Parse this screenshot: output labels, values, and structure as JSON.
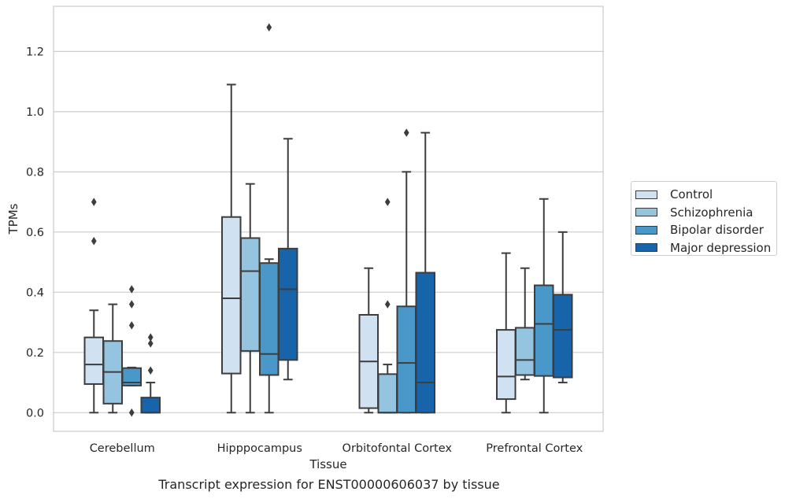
{
  "chart_data": {
    "type": "box",
    "title": "Transcript expression for ENST00000606037 by tissue",
    "xlabel": "Tissue",
    "ylabel": "TPMs",
    "ylim": [
      -0.062,
      1.35
    ],
    "yticks": [
      0.0,
      0.2,
      0.4,
      0.6,
      0.8,
      1.0,
      1.2
    ],
    "ytick_labels": [
      "0.0",
      "0.2",
      "0.4",
      "0.6",
      "0.8",
      "1.0",
      "1.2"
    ],
    "categories": [
      "Cerebellum",
      "Hipppocampus",
      "Orbitofontal Cortex",
      "Prefrontal Cortex"
    ],
    "grid": true,
    "legend_position": "right",
    "series": [
      {
        "name": "Control",
        "color": "#d0e1f2",
        "boxes": [
          {
            "whislo": 0.0,
            "q1": 0.095,
            "med": 0.16,
            "q3": 0.25,
            "whishi": 0.34,
            "fliers": [
              0.57,
              0.7
            ]
          },
          {
            "whislo": 0.0,
            "q1": 0.13,
            "med": 0.38,
            "q3": 0.65,
            "whishi": 1.09,
            "fliers": []
          },
          {
            "whislo": 0.0,
            "q1": 0.015,
            "med": 0.17,
            "q3": 0.325,
            "whishi": 0.48,
            "fliers": []
          },
          {
            "whislo": 0.0,
            "q1": 0.045,
            "med": 0.12,
            "q3": 0.275,
            "whishi": 0.53,
            "fliers": []
          }
        ]
      },
      {
        "name": "Schizophrenia",
        "color": "#94c4df",
        "boxes": [
          {
            "whislo": 0.0,
            "q1": 0.03,
            "med": 0.135,
            "q3": 0.238,
            "whishi": 0.36,
            "fliers": []
          },
          {
            "whislo": 0.0,
            "q1": 0.205,
            "med": 0.47,
            "q3": 0.58,
            "whishi": 0.76,
            "fliers": []
          },
          {
            "whislo": 0.0,
            "q1": 0.0,
            "med": 0.0,
            "q3": 0.128,
            "whishi": 0.16,
            "fliers": [
              0.36,
              0.7
            ]
          },
          {
            "whislo": 0.11,
            "q1": 0.125,
            "med": 0.175,
            "q3": 0.282,
            "whishi": 0.48,
            "fliers": []
          }
        ]
      },
      {
        "name": "Bipolar disorder",
        "color": "#4a98c9",
        "boxes": [
          {
            "whislo": 0.09,
            "q1": 0.09,
            "med": 0.1,
            "q3": 0.148,
            "whishi": 0.15,
            "fliers": [
              0.0,
              0.29,
              0.36,
              0.41
            ]
          },
          {
            "whislo": 0.0,
            "q1": 0.125,
            "med": 0.195,
            "q3": 0.497,
            "whishi": 0.51,
            "fliers": [
              1.28
            ]
          },
          {
            "whislo": 0.0,
            "q1": 0.0,
            "med": 0.165,
            "q3": 0.353,
            "whishi": 0.8,
            "fliers": [
              0.93
            ]
          },
          {
            "whislo": 0.0,
            "q1": 0.122,
            "med": 0.295,
            "q3": 0.423,
            "whishi": 0.71,
            "fliers": []
          }
        ]
      },
      {
        "name": "Major depression",
        "color": "#1764ab",
        "boxes": [
          {
            "whislo": 0.0,
            "q1": 0.0,
            "med": 0.0,
            "q3": 0.05,
            "whishi": 0.1,
            "fliers": [
              0.14,
              0.23,
              0.25
            ]
          },
          {
            "whislo": 0.11,
            "q1": 0.175,
            "med": 0.41,
            "q3": 0.545,
            "whishi": 0.91,
            "fliers": []
          },
          {
            "whislo": 0.0,
            "q1": 0.0,
            "med": 0.1,
            "q3": 0.465,
            "whishi": 0.93,
            "fliers": []
          },
          {
            "whislo": 0.1,
            "q1": 0.117,
            "med": 0.275,
            "q3": 0.392,
            "whishi": 0.6,
            "fliers": []
          }
        ]
      }
    ]
  }
}
